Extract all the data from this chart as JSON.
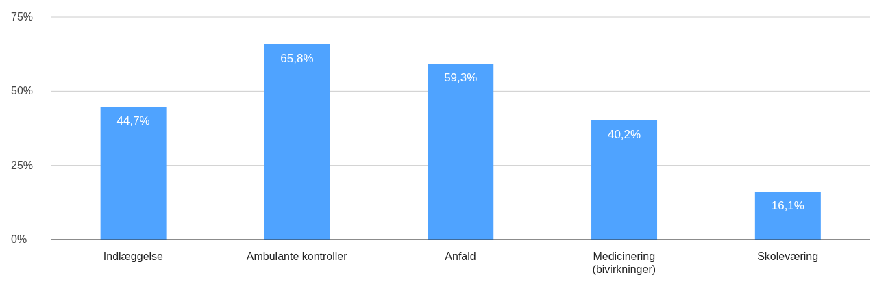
{
  "chart_data": {
    "type": "bar",
    "categories": [
      "Indlæggelse",
      "Ambulante kontroller",
      "Anfald",
      "Medicinering (bivirkninger)",
      "Skoleværing"
    ],
    "values": [
      44.7,
      65.8,
      59.3,
      40.2,
      16.1
    ],
    "color": "#4fa3ff",
    "value_labels": [
      "44,7%",
      "65,8%",
      "59,3%",
      "40,2%",
      "16,1%"
    ],
    "ylim": [
      0,
      75
    ],
    "yticks": [
      {
        "value": 0,
        "label": "0%"
      },
      {
        "value": 25,
        "label": "25%"
      },
      {
        "value": 50,
        "label": "50%"
      },
      {
        "value": 75,
        "label": "75%"
      }
    ],
    "grid": "y",
    "legend": false
  }
}
